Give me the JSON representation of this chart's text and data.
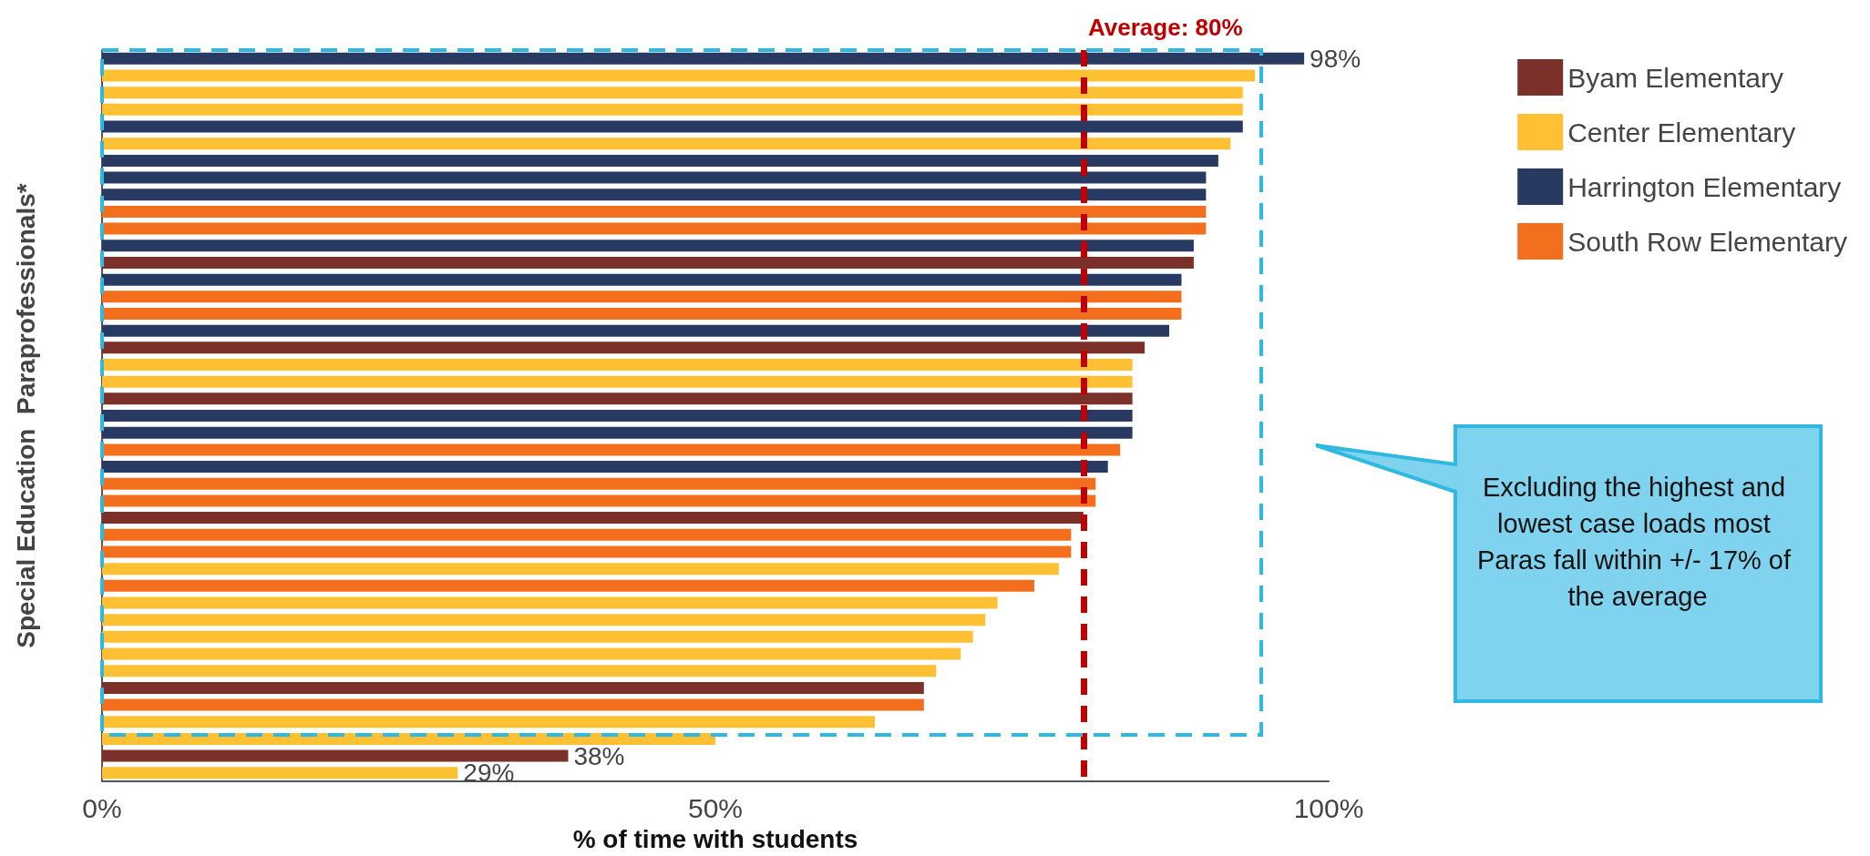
{
  "chart_data": {
    "type": "bar",
    "orientation": "horizontal",
    "ylabel": "Special Education  Paraprofessionals*",
    "xlabel": "% of time with students",
    "categories": [
      null,
      null,
      null,
      null,
      null,
      null,
      null,
      null,
      null,
      null,
      null,
      null,
      null,
      null,
      null,
      null,
      null,
      null,
      null,
      null,
      null,
      null,
      null,
      null,
      null,
      null,
      null,
      null,
      null,
      null,
      null,
      null,
      null,
      null,
      null,
      null,
      null,
      null,
      null,
      null,
      null,
      null,
      null
    ],
    "series": [
      {
        "name": "Byam Elementary",
        "color": "#7b3029",
        "values": [
          null,
          null,
          null,
          null,
          null,
          null,
          null,
          null,
          null,
          null,
          null,
          null,
          89,
          null,
          null,
          null,
          null,
          85,
          null,
          null,
          84,
          null,
          null,
          null,
          null,
          null,
          null,
          80,
          null,
          null,
          null,
          null,
          null,
          null,
          null,
          null,
          null,
          67,
          null,
          null,
          null,
          38,
          null
        ],
        "value_labels": [
          null,
          null,
          null,
          null,
          null,
          null,
          null,
          null,
          null,
          null,
          null,
          null,
          null,
          null,
          null,
          null,
          null,
          null,
          null,
          null,
          null,
          null,
          null,
          null,
          null,
          null,
          null,
          null,
          null,
          null,
          null,
          null,
          null,
          null,
          null,
          null,
          null,
          null,
          null,
          null,
          null,
          "38%",
          null
        ]
      },
      {
        "name": "Center Elementary",
        "color": "#ffc133",
        "values": [
          null,
          94,
          93,
          93,
          null,
          92,
          null,
          null,
          null,
          null,
          null,
          null,
          null,
          null,
          null,
          null,
          null,
          null,
          84,
          84,
          null,
          null,
          null,
          null,
          null,
          null,
          null,
          null,
          null,
          null,
          78,
          null,
          73,
          72,
          71,
          70,
          68,
          null,
          null,
          63,
          50,
          null,
          29
        ],
        "value_labels": [
          null,
          null,
          null,
          null,
          null,
          null,
          null,
          null,
          null,
          null,
          null,
          null,
          null,
          null,
          null,
          null,
          null,
          null,
          null,
          null,
          null,
          null,
          null,
          null,
          null,
          null,
          null,
          null,
          null,
          null,
          null,
          null,
          null,
          null,
          null,
          null,
          null,
          null,
          null,
          null,
          null,
          null,
          "29%"
        ]
      },
      {
        "name": "Harrington Elementary",
        "color": "#283a62",
        "values": [
          98,
          null,
          null,
          null,
          93,
          null,
          91,
          90,
          90,
          null,
          null,
          89,
          null,
          88,
          null,
          null,
          87,
          null,
          null,
          null,
          null,
          84,
          84,
          null,
          82,
          null,
          null,
          null,
          null,
          null,
          null,
          null,
          null,
          null,
          null,
          null,
          null,
          null,
          null,
          null,
          null,
          null,
          null
        ],
        "value_labels": [
          "98%",
          null,
          null,
          null,
          null,
          null,
          null,
          null,
          null,
          null,
          null,
          null,
          null,
          null,
          null,
          null,
          null,
          null,
          null,
          null,
          null,
          null,
          null,
          null,
          null,
          null,
          null,
          null,
          null,
          null,
          null,
          null,
          null,
          null,
          null,
          null,
          null,
          null,
          null,
          null,
          null,
          null,
          null
        ]
      },
      {
        "name": "South Row Elementary",
        "color": "#f36e1d",
        "values": [
          null,
          null,
          null,
          null,
          null,
          null,
          null,
          null,
          null,
          90,
          90,
          null,
          null,
          null,
          88,
          88,
          null,
          null,
          null,
          null,
          null,
          null,
          null,
          83,
          null,
          81,
          81,
          null,
          79,
          79,
          null,
          76,
          null,
          null,
          null,
          null,
          null,
          null,
          67,
          null,
          null,
          null,
          null
        ],
        "value_labels": [
          null,
          null,
          null,
          null,
          null,
          null,
          null,
          null,
          null,
          null,
          null,
          null,
          null,
          null,
          null,
          null,
          null,
          null,
          null,
          null,
          null,
          null,
          null,
          null,
          null,
          null,
          null,
          null,
          null,
          null,
          null,
          null,
          null,
          null,
          null,
          null,
          null,
          null,
          null,
          null,
          null,
          null,
          null
        ]
      }
    ],
    "xlim": [
      0,
      100
    ],
    "xticks": [
      {
        "value": 0,
        "label": "0%"
      },
      {
        "value": 50,
        "label": "50%"
      },
      {
        "value": 100,
        "label": "100%"
      }
    ],
    "ref_lines": [
      {
        "axis": "x",
        "value": 80,
        "label": "Average: 80%",
        "color": "#c00000",
        "line_style": "dashed"
      }
    ],
    "annotations": [
      "Excluding the highest and lowest case loads most Paras fall within +/- 17% of the average"
    ],
    "grid": false,
    "legend": "top right"
  }
}
